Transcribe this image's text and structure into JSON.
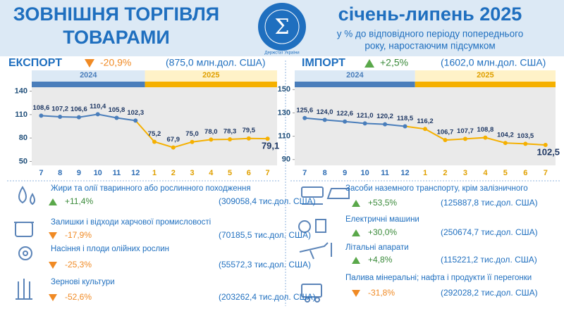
{
  "header": {
    "title_line1": "ЗОВНІШНЯ ТОРГІВЛЯ",
    "title_line2": "ТОВАРАМИ",
    "logo_text": "Держстат України",
    "period": "січень-липень 2025",
    "subtitle_line1": "у % до відповідного періоду попереднього",
    "subtitle_line2": "року, наростаючим підсумком"
  },
  "export": {
    "label": "ЕКСПОРТ",
    "change": "-20,9%",
    "amount": "(875,0 млн.дол. США)",
    "items": [
      {
        "name": "Жири та олії тваринного або рослинного походження",
        "change": "+11,4%",
        "amount": "(309058,4 тис.дол. США)"
      },
      {
        "name": "Залишки і відходи харчової промисловості",
        "change": "-17,9%",
        "amount": "(70185,5 тис.дол. США)"
      },
      {
        "name": "Насіння і плоди олійних рослин",
        "change": "-25,3%",
        "amount": "(55572,3 тис.дол. США)"
      },
      {
        "name": "Зернові культури",
        "change": "-52,6%",
        "amount": "(203262,4 тис.дол. США)"
      }
    ]
  },
  "import": {
    "label": "ІМПОРТ",
    "change": "+2,5%",
    "amount": "(1602,0 млн.дол. США)",
    "items": [
      {
        "name": "Засоби наземного транспорту, крім залізничного",
        "change": "+53,5%",
        "amount": "(125887,8 тис.дол. США)"
      },
      {
        "name": "Електричні машини",
        "change": "+30,0%",
        "amount": "(250674,7 тис.дол. США)"
      },
      {
        "name": "Літальні апарати",
        "change": "+4,8%",
        "amount": "(115221,2 тис.дол. США)"
      },
      {
        "name": "Палива мінеральні; нафта і продукти її перегонки",
        "change": "-31,8%",
        "amount": "(292028,2 тис.дол. США)"
      }
    ]
  },
  "chart_data": [
    {
      "type": "line",
      "categories": [
        "7",
        "8",
        "9",
        "10",
        "11",
        "12",
        "1",
        "2",
        "3",
        "4",
        "5",
        "6",
        "7"
      ],
      "series": [
        {
          "name": "2024",
          "color": "#4a7ebb",
          "values": [
            108.6,
            107.2,
            106.6,
            110.4,
            105.8,
            102.3,
            null,
            null,
            null,
            null,
            null,
            null,
            null
          ],
          "value_labels": [
            "108,6",
            "107,2",
            "106,6",
            "110,4",
            "105,8",
            "102,3",
            null,
            null,
            null,
            null,
            null,
            null,
            null
          ]
        },
        {
          "name": "2025",
          "color": "#f5b000",
          "values": [
            null,
            null,
            null,
            null,
            null,
            null,
            75.2,
            67.9,
            75.0,
            78.0,
            78.3,
            79.5,
            79.1
          ],
          "value_labels": [
            null,
            null,
            null,
            null,
            null,
            null,
            "75,2",
            "67,9",
            "75,0",
            "78,0",
            "78,3",
            "79,5",
            "79,1"
          ]
        }
      ],
      "ylim": [
        45,
        145
      ],
      "yticks": [
        50,
        80,
        110,
        140
      ]
    },
    {
      "type": "line",
      "categories": [
        "7",
        "8",
        "9",
        "10",
        "11",
        "12",
        "1",
        "2",
        "3",
        "4",
        "5",
        "6",
        "7"
      ],
      "series": [
        {
          "name": "2024",
          "color": "#4a7ebb",
          "values": [
            125.6,
            124.0,
            122.6,
            121.0,
            120.2,
            118.5,
            null,
            null,
            null,
            null,
            null,
            null,
            null
          ],
          "value_labels": [
            "125,6",
            "124,0",
            "122,6",
            "121,0",
            "120,2",
            "118,5",
            null,
            null,
            null,
            null,
            null,
            null,
            null
          ]
        },
        {
          "name": "2025",
          "color": "#f5b000",
          "values": [
            null,
            null,
            null,
            null,
            null,
            null,
            116.2,
            106.7,
            107.7,
            108.8,
            104.2,
            103.5,
            102.5
          ],
          "value_labels": [
            null,
            null,
            null,
            null,
            null,
            null,
            "116,2",
            "106,7",
            "107,7",
            "108,8",
            "104,2",
            "103,5",
            "102,5"
          ]
        }
      ],
      "ylim": [
        85,
        152
      ],
      "yticks": [
        90,
        110,
        130,
        150
      ]
    }
  ]
}
